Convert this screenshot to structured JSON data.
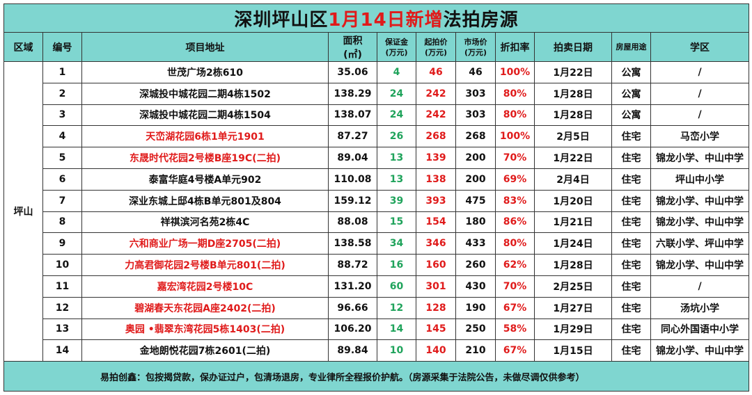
{
  "title": {
    "prefix": "深圳坪山区",
    "highlight": "1月14日新增",
    "suffix": "法拍房源"
  },
  "headers": {
    "district": "区域",
    "no": "编号",
    "address": "项目地址",
    "area_1": "面积",
    "area_2": "(㎡)",
    "deposit_1": "保证金",
    "deposit_2": "(万元)",
    "start_price_1": "起拍价",
    "start_price_2": "(万元)",
    "market_price_1": "市场价",
    "market_price_2": "(万元)",
    "discount": "折扣率",
    "auction_date": "拍卖日期",
    "usage": "房屋用途",
    "school": "学区"
  },
  "district": "坪山",
  "colors": {
    "header_bg": "#7fd6d0",
    "red": "#e01b1b",
    "green": "#1fa35b"
  },
  "rows": [
    {
      "no": "1",
      "address": "世茂广场2栋610",
      "address_red": false,
      "area": "35.06",
      "deposit": "4",
      "start": "46",
      "market": "46",
      "discount": "100%",
      "date": "1月22日",
      "usage": "公寓",
      "school": "/"
    },
    {
      "no": "2",
      "address": "深城投中城花园二期4栋1502",
      "address_red": false,
      "area": "138.29",
      "deposit": "24",
      "start": "242",
      "market": "303",
      "discount": "80%",
      "date": "1月28日",
      "usage": "公寓",
      "school": "/"
    },
    {
      "no": "3",
      "address": "深城投中城花园二期4栋1504",
      "address_red": false,
      "area": "138.07",
      "deposit": "24",
      "start": "242",
      "market": "303",
      "discount": "80%",
      "date": "1月28日",
      "usage": "公寓",
      "school": "/"
    },
    {
      "no": "4",
      "address": "天峦湖花园6栋1单元1901",
      "address_red": true,
      "area": "87.27",
      "deposit": "26",
      "start": "268",
      "market": "268",
      "discount": "100%",
      "date": "2月5日",
      "usage": "住宅",
      "school": "马峦小学"
    },
    {
      "no": "5",
      "address": "东晟时代花园2号楼B座19C(二拍)",
      "address_red": true,
      "area": "89.04",
      "deposit": "13",
      "start": "139",
      "market": "200",
      "discount": "70%",
      "date": "1月22日",
      "usage": "住宅",
      "school": "锦龙小学、中山中学"
    },
    {
      "no": "6",
      "address": "泰富华庭4号楼A单元902",
      "address_red": false,
      "area": "110.08",
      "deposit": "13",
      "start": "138",
      "market": "200",
      "discount": "69%",
      "date": "2月4日",
      "usage": "住宅",
      "school": "坪山中小学"
    },
    {
      "no": "7",
      "address": "深业东城上邸4栋B单元801及804",
      "address_red": false,
      "area": "159.12",
      "deposit": "39",
      "start": "393",
      "market": "475",
      "discount": "83%",
      "date": "1月20日",
      "usage": "住宅",
      "school": "锦龙小学、中山中学"
    },
    {
      "no": "8",
      "address": "祥祺滨河名苑2栋4C",
      "address_red": false,
      "area": "88.08",
      "deposit": "15",
      "start": "154",
      "market": "180",
      "discount": "86%",
      "date": "1月21日",
      "usage": "住宅",
      "school": "锦龙小学、中山中学"
    },
    {
      "no": "9",
      "address": "六和商业广场一期D座2705(二拍)",
      "address_red": true,
      "area": "138.58",
      "deposit": "34",
      "start": "346",
      "market": "433",
      "discount": "80%",
      "date": "1月24日",
      "usage": "住宅",
      "school": "六联小学、坪山中学"
    },
    {
      "no": "10",
      "address": "力高君御花园2号楼B单元801(二拍)",
      "address_red": true,
      "area": "88.72",
      "deposit": "16",
      "start": "160",
      "market": "260",
      "discount": "62%",
      "date": "1月28日",
      "usage": "住宅",
      "school": "锦龙小学、中山中学"
    },
    {
      "no": "11",
      "address": "嘉宏湾花园2号楼10C",
      "address_red": true,
      "area": "131.20",
      "deposit": "60",
      "start": "301",
      "market": "430",
      "discount": "70%",
      "date": "2月25日",
      "usage": "住宅",
      "school": "/"
    },
    {
      "no": "12",
      "address": "碧湖春天东花园A座2402(二拍)",
      "address_red": true,
      "area": "96.66",
      "deposit": "12",
      "start": "128",
      "market": "190",
      "discount": "67%",
      "date": "1月27日",
      "usage": "住宅",
      "school": "汤坑小学"
    },
    {
      "no": "13",
      "address": "奥园 •翡翠东湾花园5栋1403(二拍)",
      "address_red": true,
      "area": "106.20",
      "deposit": "14",
      "start": "145",
      "market": "250",
      "discount": "58%",
      "date": "1月29日",
      "usage": "住宅",
      "school": "同心外国语中小学"
    },
    {
      "no": "14",
      "address": "金地朗悦花园7栋2601(二拍)",
      "address_red": false,
      "area": "89.84",
      "deposit": "10",
      "start": "140",
      "market": "210",
      "discount": "67%",
      "date": "1月15日",
      "usage": "住宅",
      "school": "锦龙小学、中山中学"
    }
  ],
  "footer": "易拍创鑫：包按揭贷款，保办证过户，包清场退房，专业律所全程报价护航。（房源采集于法院公告，未做尽调仅供参考）"
}
